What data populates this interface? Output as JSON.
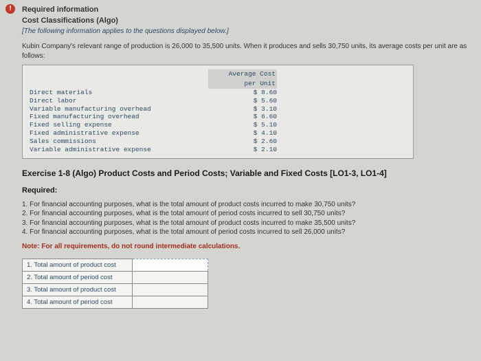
{
  "alert_glyph": "!",
  "heading1": "Required information",
  "heading2": "Cost Classifications (Algo)",
  "italic_note": "[The following information applies to the questions displayed below.]",
  "intro": "Kubin Company's relevant range of production is 26,000 to 35,500 units. When it produces and sells 30,750 units, its average costs per unit are as follows:",
  "cost_header_l1": "Average Cost",
  "cost_header_l2": "per Unit",
  "cost_rows": [
    {
      "label": "Direct materials",
      "value": "$ 8.60"
    },
    {
      "label": "Direct labor",
      "value": "$ 5.60"
    },
    {
      "label": "Variable manufacturing overhead",
      "value": "$ 3.10"
    },
    {
      "label": "Fixed manufacturing overhead",
      "value": "$ 6.60"
    },
    {
      "label": "Fixed selling expense",
      "value": "$ 5.10"
    },
    {
      "label": "Fixed administrative expense",
      "value": "$ 4.10"
    },
    {
      "label": "Sales commissions",
      "value": "$ 2.60"
    },
    {
      "label": "Variable administrative expense",
      "value": "$ 2.10"
    }
  ],
  "exercise_title": "Exercise 1-8 (Algo) Product Costs and Period Costs; Variable and Fixed Costs [LO1-3, LO1-4]",
  "required_label": "Required:",
  "questions": [
    "1. For financial accounting purposes, what is the total amount of product costs incurred to make 30,750 units?",
    "2. For financial accounting purposes, what is the total amount of period costs incurred to sell 30,750 units?",
    "3. For financial accounting purposes, what is the total amount of product costs incurred to make 35,500 units?",
    "4. For financial accounting purposes, what is the total amount of period costs incurred to sell 26,000 units?"
  ],
  "note_red": "Note: For all requirements, do not round intermediate calculations.",
  "answer_rows": [
    "1. Total amount of product cost",
    "2. Total amount of period cost",
    "3. Total amount of product cost",
    "4. Total amount of period cost"
  ],
  "colors": {
    "bg": "#d4d4d0",
    "blue_text": "#2b4a6b",
    "red_text": "#a03020",
    "border": "#888"
  }
}
